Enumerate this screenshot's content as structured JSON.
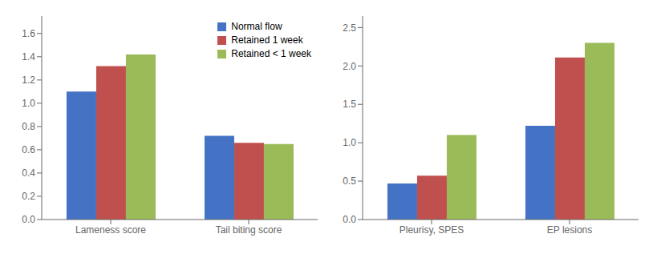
{
  "chart_data": [
    {
      "type": "bar",
      "categories": [
        "Lameness score",
        "Tail biting score"
      ],
      "series": [
        {
          "name": "Normal flow",
          "color": "#4472C4",
          "values": [
            1.1,
            0.72
          ]
        },
        {
          "name": "Retained 1 week",
          "color": "#C0504D",
          "values": [
            1.32,
            0.66
          ]
        },
        {
          "name": "Retained < 1 week",
          "color": "#9BBB59",
          "values": [
            1.42,
            0.65
          ]
        }
      ],
      "ylim": [
        0,
        1.75
      ],
      "yticks": [
        {
          "value": 0.0,
          "label": "0.0"
        },
        {
          "value": 0.2,
          "label": "0.2"
        },
        {
          "value": 0.4,
          "label": "0.4"
        },
        {
          "value": 0.6,
          "label": "0.6"
        },
        {
          "value": 0.8,
          "label": "0.8"
        },
        {
          "value": 1.0,
          "label": "1.0"
        },
        {
          "value": 1.2,
          "label": "1.2"
        },
        {
          "value": 1.4,
          "label": "1.4"
        },
        {
          "value": 1.6,
          "label": "1.6"
        }
      ],
      "grid": false,
      "legend": "upper right"
    },
    {
      "type": "bar",
      "categories": [
        "Pleurisy, SPES",
        "EP lesions"
      ],
      "series": [
        {
          "name": "Normal flow",
          "color": "#4472C4",
          "values": [
            0.47,
            1.22
          ]
        },
        {
          "name": "Retained 1 week",
          "color": "#C0504D",
          "values": [
            0.57,
            2.11
          ]
        },
        {
          "name": "Retained < 1 week",
          "color": "#9BBB59",
          "values": [
            1.1,
            2.3
          ]
        }
      ],
      "ylim": [
        0,
        2.65
      ],
      "yticks": [
        {
          "value": 0.0,
          "label": "0.0"
        },
        {
          "value": 0.5,
          "label": "0.5"
        },
        {
          "value": 1.0,
          "label": "1.0"
        },
        {
          "value": 1.5,
          "label": "1.5"
        },
        {
          "value": 2.0,
          "label": "2.0"
        },
        {
          "value": 2.5,
          "label": "2.5"
        }
      ],
      "grid": false
    }
  ]
}
